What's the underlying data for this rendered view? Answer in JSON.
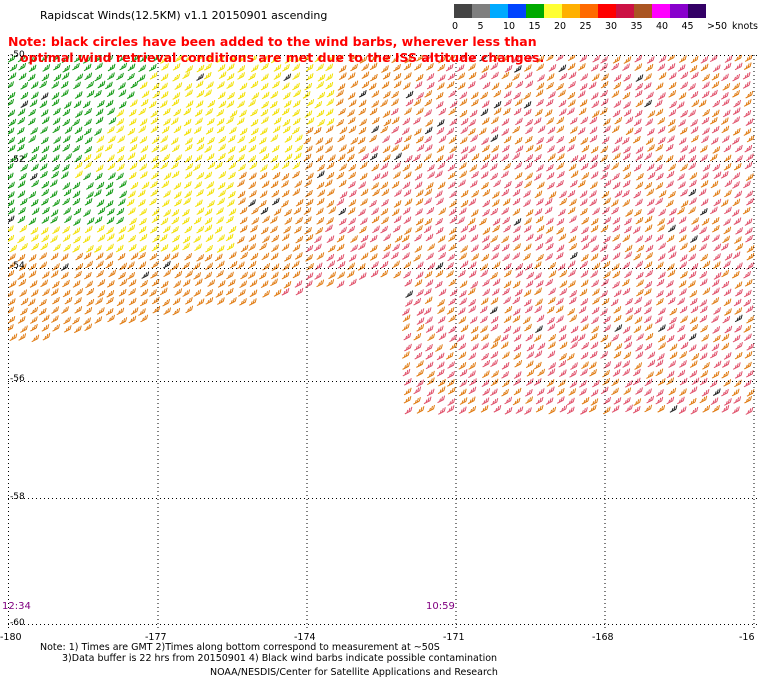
{
  "header": {
    "title": "Rapidscat Winds(12.5KM) v1.1 20150901 ascending",
    "note_line1": "Note: black circles have been added to the wind barbs, wherever less than",
    "note_line2": "optimal wind retrieval conditions are met due to the ISS altitude changes."
  },
  "colorbar": {
    "colors": [
      "#444444",
      "#7f7f7f",
      "#00aaff",
      "#0044ff",
      "#00aa00",
      "#ffff33",
      "#ffb000",
      "#ff6a00",
      "#ff0000",
      "#cc1144",
      "#aa5522",
      "#ff00ff",
      "#8800cc",
      "#330066"
    ],
    "labels": [
      "0",
      "5",
      "10",
      "15",
      "20",
      "25",
      "30",
      "35",
      "40",
      "45",
      ">50"
    ],
    "units": "knots"
  },
  "axes": {
    "y_ticks": [
      "-50",
      "-52",
      "-54",
      "-56",
      "-58",
      "-60"
    ],
    "x_ticks": [
      "-180",
      "-177",
      "-174",
      "-171",
      "-168",
      "-16"
    ]
  },
  "times": {
    "left": "12:34",
    "right": "10:59"
  },
  "footer": {
    "line1": "Note: 1) Times are GMT 2)Times along bottom correspond to measurement at ~50S",
    "line2": "3)Data buffer is 22 hrs from 20150901 4) Black wind barbs indicate possible contamination",
    "line3": "NOAA/NESDIS/Center for Satellite Applications and Research"
  }
}
